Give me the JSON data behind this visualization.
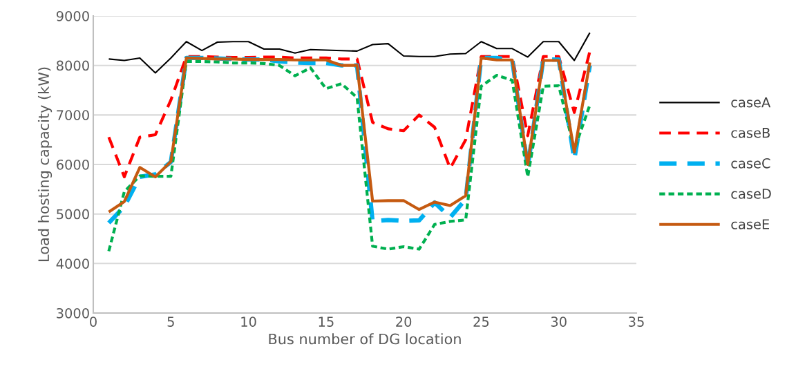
{
  "chart_data": {
    "type": "line",
    "xlabel": "Bus number of DG location",
    "ylabel": "Load hosting capacity (kW)",
    "x": [
      1,
      2,
      3,
      4,
      5,
      6,
      7,
      8,
      9,
      10,
      11,
      12,
      13,
      14,
      15,
      16,
      17,
      18,
      19,
      20,
      21,
      22,
      23,
      24,
      25,
      26,
      27,
      28,
      29,
      30,
      31,
      32
    ],
    "xlim": [
      0,
      35
    ],
    "xticks": [
      0,
      5,
      10,
      15,
      20,
      25,
      30,
      35
    ],
    "ylim": [
      3000,
      9000
    ],
    "yticks": [
      3000,
      4000,
      5000,
      6000,
      7000,
      8000,
      9000
    ],
    "grid": "y",
    "legend": "right",
    "marker": "none",
    "series": [
      {
        "name": "caseA",
        "color": "#000000",
        "line_style": "solid",
        "values": [
          8130,
          8100,
          8150,
          7850,
          8150,
          8480,
          8300,
          8470,
          8480,
          8480,
          8330,
          8330,
          8250,
          8320,
          8310,
          8300,
          8290,
          8420,
          8440,
          8190,
          8180,
          8180,
          8230,
          8240,
          8480,
          8340,
          8340,
          8170,
          8480,
          8480,
          8100,
          8660
        ]
      },
      {
        "name": "caseB",
        "color": "#ff0000",
        "line_style": "dashed",
        "values": [
          6550,
          5750,
          6550,
          6600,
          7300,
          8180,
          8180,
          8170,
          8160,
          8160,
          8170,
          8170,
          8150,
          8150,
          8150,
          8130,
          8130,
          6850,
          6720,
          6680,
          7000,
          6750,
          5920,
          6500,
          8180,
          8180,
          8180,
          6580,
          8180,
          8180,
          7050,
          8280
        ]
      },
      {
        "name": "caseC",
        "color": "#00b0f0",
        "line_style": "dashed",
        "values": [
          4820,
          5150,
          5750,
          5800,
          6050,
          8150,
          8150,
          8140,
          8130,
          8120,
          8120,
          8080,
          8060,
          8050,
          8050,
          8000,
          8000,
          4850,
          4880,
          4860,
          4870,
          5230,
          4930,
          5300,
          8150,
          8150,
          8100,
          5950,
          8120,
          8120,
          6100,
          8000
        ]
      },
      {
        "name": "caseD",
        "color": "#00b050",
        "line_style": "dotted",
        "values": [
          4250,
          5450,
          5770,
          5760,
          5760,
          8080,
          8080,
          8070,
          8050,
          8050,
          8040,
          8000,
          7790,
          7950,
          7530,
          7630,
          7350,
          4350,
          4290,
          4340,
          4290,
          4790,
          4850,
          4880,
          7580,
          7800,
          7700,
          5750,
          7580,
          7590,
          6300,
          7200
        ]
      },
      {
        "name": "caseE",
        "color": "#c55a11",
        "line_style": "solid",
        "values": [
          5040,
          5250,
          5940,
          5750,
          6060,
          8150,
          8140,
          8130,
          8130,
          8120,
          8120,
          8120,
          8110,
          8110,
          8110,
          8000,
          8000,
          5260,
          5270,
          5270,
          5090,
          5240,
          5170,
          5370,
          8150,
          8110,
          8110,
          6000,
          8100,
          8100,
          6250,
          8060
        ]
      }
    ]
  }
}
